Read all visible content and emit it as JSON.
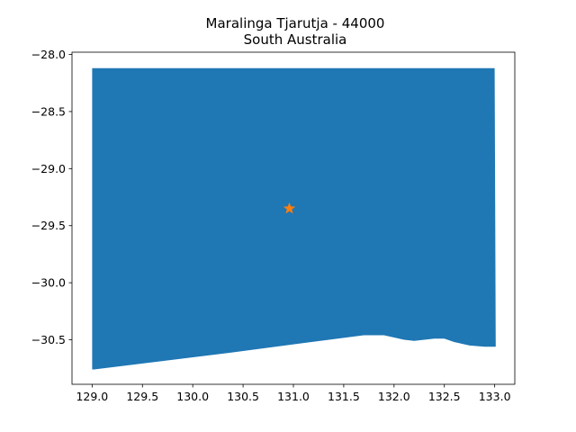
{
  "map": {
    "title_line1": "Maralinga Tjarutja - 44000",
    "title_line2": "South Australia",
    "region_color": "#1f77b4",
    "marker_color": "#ff7f0e",
    "marker_icon": "star-icon",
    "marker": {
      "lon": 130.96,
      "lat": -29.35
    },
    "xlim": [
      128.8,
      133.2
    ],
    "ylim": [
      -30.89,
      -27.98
    ],
    "x_ticks": [
      "129.0",
      "129.5",
      "130.0",
      "130.5",
      "131.0",
      "131.5",
      "132.0",
      "132.5",
      "133.0"
    ],
    "y_ticks": [
      "−28.0",
      "−28.5",
      "−29.0",
      "−29.5",
      "−30.0",
      "−30.5"
    ],
    "boundary": [
      [
        129.0,
        -28.12
      ],
      [
        133.0,
        -28.12
      ],
      [
        133.01,
        -30.56
      ],
      [
        132.9,
        -30.56
      ],
      [
        132.75,
        -30.55
      ],
      [
        132.6,
        -30.52
      ],
      [
        132.5,
        -30.49
      ],
      [
        132.4,
        -30.49
      ],
      [
        132.3,
        -30.5
      ],
      [
        132.2,
        -30.51
      ],
      [
        132.1,
        -30.5
      ],
      [
        132.0,
        -30.48
      ],
      [
        131.9,
        -30.46
      ],
      [
        131.8,
        -30.46
      ],
      [
        131.7,
        -30.46
      ],
      [
        131.0,
        -30.54
      ],
      [
        130.4,
        -30.61
      ],
      [
        129.02,
        -30.76
      ],
      [
        129.0,
        -30.76
      ]
    ]
  }
}
